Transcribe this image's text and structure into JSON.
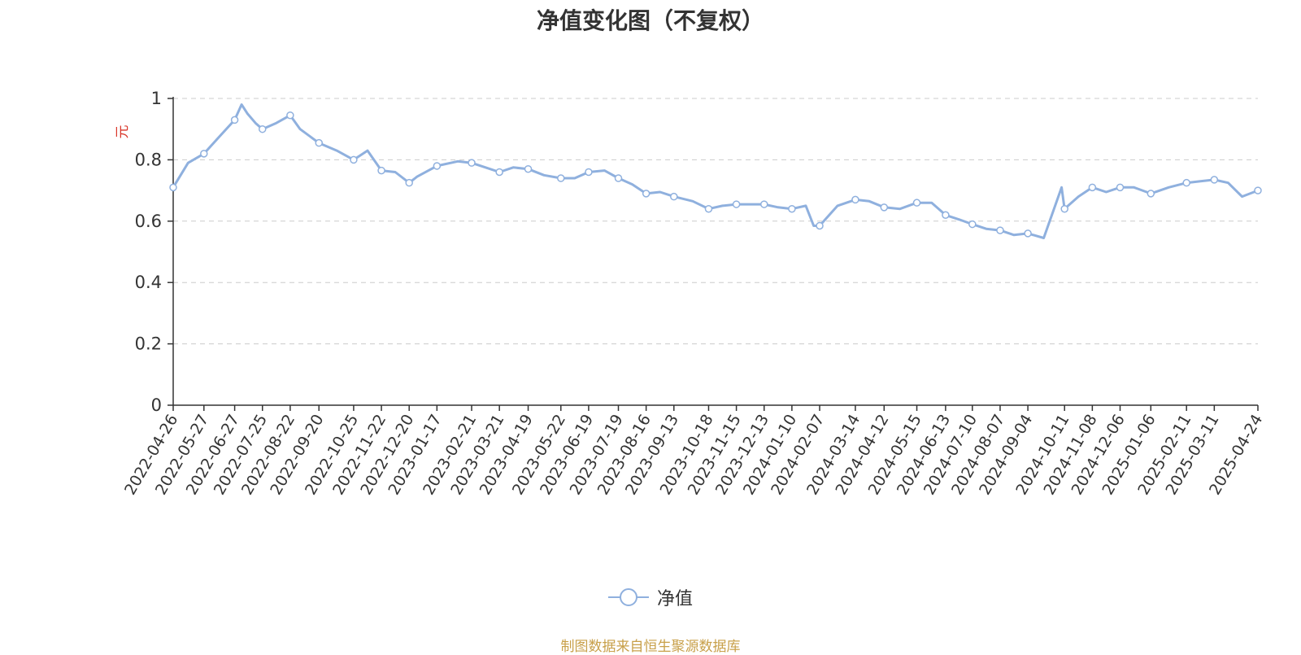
{
  "colors": {
    "line": "#8fb0de",
    "title": "#333333",
    "unit": "#d9372b",
    "source": "#c8a04a",
    "grid": "#cccccc"
  },
  "chart_data": {
    "type": "line",
    "title": "净值变化图（不复权）",
    "ylabel": "元",
    "ylim": [
      0,
      1
    ],
    "yticks": [
      "0",
      "0.2",
      "0.4",
      "0.6",
      "0.8",
      "1"
    ],
    "xticks": [
      "2022-04-26",
      "2022-05-27",
      "2022-06-27",
      "2022-07-25",
      "2022-08-22",
      "2022-09-20",
      "2022-10-25",
      "2022-11-22",
      "2022-12-20",
      "2023-01-17",
      "2023-02-21",
      "2023-03-21",
      "2023-04-19",
      "2023-05-22",
      "2023-06-19",
      "2023-07-19",
      "2023-08-16",
      "2023-09-13",
      "2023-10-18",
      "2023-11-15",
      "2023-12-13",
      "2024-01-10",
      "2024-02-07",
      "2024-03-14",
      "2024-04-12",
      "2024-05-15",
      "2024-06-13",
      "2024-07-10",
      "2024-08-07",
      "2024-09-04",
      "2024-10-11",
      "2024-11-08",
      "2024-12-06",
      "2025-01-06",
      "2025-02-11",
      "2025-03-11",
      "2025-04-24"
    ],
    "grid": true,
    "legend_position": "bottom-center",
    "series": [
      {
        "name": "净值",
        "x": [
          "2022-04-26",
          "2022-05-11",
          "2022-05-27",
          "2022-06-10",
          "2022-06-27",
          "2022-07-04",
          "2022-07-10",
          "2022-07-18",
          "2022-07-25",
          "2022-08-08",
          "2022-08-22",
          "2022-09-01",
          "2022-09-20",
          "2022-10-08",
          "2022-10-25",
          "2022-11-08",
          "2022-11-22",
          "2022-12-06",
          "2022-12-20",
          "2022-12-28",
          "2023-01-17",
          "2023-02-07",
          "2023-02-21",
          "2023-03-07",
          "2023-03-21",
          "2023-04-04",
          "2023-04-19",
          "2023-05-05",
          "2023-05-22",
          "2023-06-05",
          "2023-06-19",
          "2023-07-05",
          "2023-07-19",
          "2023-08-02",
          "2023-08-16",
          "2023-08-30",
          "2023-09-13",
          "2023-10-02",
          "2023-10-18",
          "2023-11-01",
          "2023-11-15",
          "2023-11-29",
          "2023-12-13",
          "2023-12-27",
          "2024-01-10",
          "2024-01-24",
          "2024-02-01",
          "2024-02-07",
          "2024-02-25",
          "2024-03-14",
          "2024-03-28",
          "2024-04-12",
          "2024-04-28",
          "2024-05-15",
          "2024-05-30",
          "2024-06-13",
          "2024-06-27",
          "2024-07-10",
          "2024-07-24",
          "2024-08-07",
          "2024-08-21",
          "2024-09-04",
          "2024-09-20",
          "2024-10-08",
          "2024-10-11",
          "2024-10-25",
          "2024-11-08",
          "2024-11-22",
          "2024-12-06",
          "2024-12-20",
          "2025-01-06",
          "2025-01-24",
          "2025-02-11",
          "2025-02-25",
          "2025-03-11",
          "2025-03-25",
          "2025-04-08",
          "2025-04-24"
        ],
        "values": [
          0.71,
          0.79,
          0.82,
          0.87,
          0.93,
          0.98,
          0.95,
          0.92,
          0.9,
          0.92,
          0.945,
          0.9,
          0.855,
          0.83,
          0.8,
          0.83,
          0.765,
          0.76,
          0.725,
          0.745,
          0.78,
          0.795,
          0.79,
          0.775,
          0.76,
          0.775,
          0.77,
          0.75,
          0.74,
          0.74,
          0.76,
          0.765,
          0.74,
          0.72,
          0.69,
          0.695,
          0.68,
          0.665,
          0.64,
          0.65,
          0.655,
          0.655,
          0.655,
          0.645,
          0.64,
          0.65,
          0.585,
          0.585,
          0.65,
          0.67,
          0.665,
          0.645,
          0.64,
          0.66,
          0.66,
          0.62,
          0.605,
          0.59,
          0.575,
          0.57,
          0.555,
          0.56,
          0.545,
          0.71,
          0.64,
          0.68,
          0.71,
          0.695,
          0.71,
          0.71,
          0.69,
          0.71,
          0.725,
          0.73,
          0.735,
          0.725,
          0.68,
          0.7
        ]
      }
    ]
  },
  "source_note": "制图数据来自恒生聚源数据库"
}
